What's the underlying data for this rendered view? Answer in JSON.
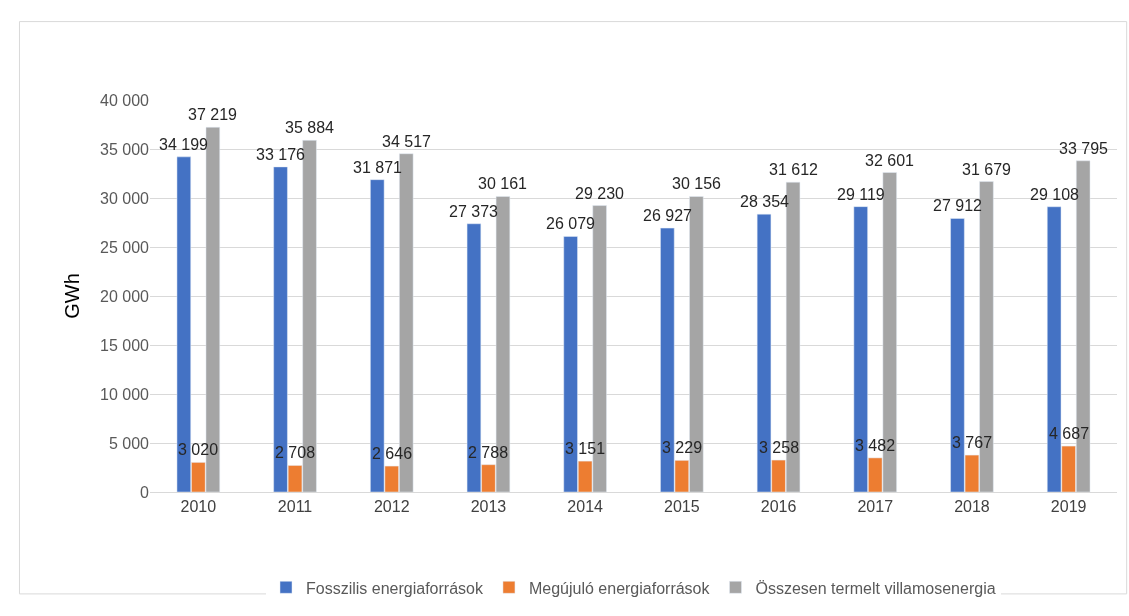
{
  "chart_data": {
    "type": "bar",
    "ylabel": "GWh",
    "categories": [
      "2010",
      "2011",
      "2012",
      "2013",
      "2014",
      "2015",
      "2016",
      "2017",
      "2018",
      "2019"
    ],
    "series": [
      {
        "name": "Fosszilis energiaforrások",
        "color": "#4472c4",
        "values": [
          34199,
          33176,
          31871,
          27373,
          26079,
          26927,
          28354,
          29119,
          27912,
          29108
        ],
        "value_labels": [
          "34 199",
          "33 176",
          "31 871",
          "27 373",
          "26 079",
          "26 927",
          "28 354",
          "29 119",
          "27 912",
          "29 108"
        ]
      },
      {
        "name": "Megújuló energiaforrások",
        "color": "#ed7d31",
        "values": [
          3020,
          2708,
          2646,
          2788,
          3151,
          3229,
          3258,
          3482,
          3767,
          4687
        ],
        "value_labels": [
          "3 020",
          "2 708",
          "2 646",
          "2 788",
          "3 151",
          "3 229",
          "3 258",
          "3 482",
          "3 767",
          "4 687"
        ]
      },
      {
        "name": "Összesen termelt villamosenergia",
        "color": "#a5a5a5",
        "values": [
          37219,
          35884,
          34517,
          30161,
          29230,
          30156,
          31612,
          32601,
          31679,
          33795
        ],
        "value_labels": [
          "37 219",
          "35 884",
          "34 517",
          "30 161",
          "29 230",
          "30 156",
          "31 612",
          "32 601",
          "31 679",
          "33 795"
        ]
      }
    ],
    "ylim": [
      0,
      40000
    ],
    "yticks": [
      0,
      {
        "value": 5000,
        "label": "5 000"
      },
      {
        "value": 10000,
        "label": "10 000"
      },
      {
        "value": 15000,
        "label": "15 000"
      },
      {
        "value": 20000,
        "label": "20 000"
      },
      {
        "value": 25000,
        "label": "25 000"
      },
      {
        "value": 30000,
        "label": "30 000"
      },
      {
        "value": 35000,
        "label": "35 000"
      },
      {
        "value": 40000,
        "label": "40 000"
      }
    ],
    "grid": "y",
    "legend": "bottom"
  }
}
